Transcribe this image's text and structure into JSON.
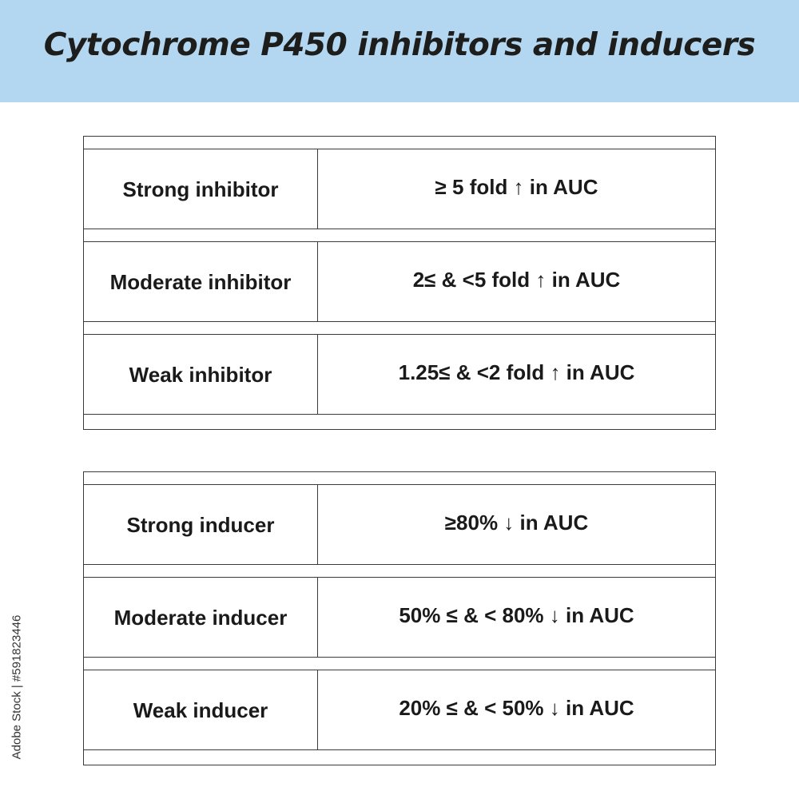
{
  "title": "Cytochrome P450 inhibitors and inducers",
  "colors": {
    "header_background": "#b3d6f1",
    "text": "#1a1a1a",
    "border": "#3a3a3a"
  },
  "inhibitors": [
    {
      "label": "Strong inhibitor",
      "value": "≥ 5 fold ↑ in AUC"
    },
    {
      "label": "Moderate inhibitor",
      "value": "2≤ & <5 fold ↑ in AUC"
    },
    {
      "label": "Weak inhibitor",
      "value": "1.25≤ & <2 fold ↑ in AUC"
    }
  ],
  "inducers": [
    {
      "label": "Strong inducer",
      "value": "≥80% ↓ in AUC"
    },
    {
      "label": "Moderate inducer",
      "value": "50% ≤ & < 80% ↓ in AUC"
    },
    {
      "label": "Weak inducer",
      "value": "20% ≤ & < 50% ↓ in AUC"
    }
  ],
  "watermark": "Adobe Stock | #591823446"
}
